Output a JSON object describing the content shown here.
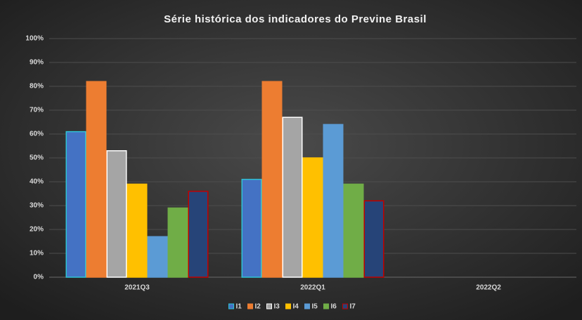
{
  "chart_data": {
    "type": "bar",
    "title": "Série histórica dos indicadores do Previne Brasil",
    "categories": [
      "2021Q3",
      "2022Q1",
      "2022Q2"
    ],
    "series": [
      {
        "name": "I1",
        "color": "#4472c4",
        "edgecolor": "#2ec4d6",
        "values": [
          61,
          41,
          null
        ]
      },
      {
        "name": "I2",
        "color": "#ed7d31",
        "edgecolor": "#ed7d31",
        "values": [
          82,
          82,
          null
        ]
      },
      {
        "name": "I3",
        "color": "#a5a5a5",
        "edgecolor": "#ffffff",
        "values": [
          53,
          67,
          null
        ]
      },
      {
        "name": "I4",
        "color": "#ffc000",
        "edgecolor": "#ffc000",
        "values": [
          39,
          50,
          null
        ]
      },
      {
        "name": "I5",
        "color": "#5b9bd5",
        "edgecolor": "#5b9bd5",
        "values": [
          17,
          64,
          null
        ]
      },
      {
        "name": "I6",
        "color": "#70ad47",
        "edgecolor": "#70ad47",
        "values": [
          29,
          39,
          null
        ]
      },
      {
        "name": "I7",
        "color": "#264478",
        "edgecolor": "#c00000",
        "values": [
          36,
          32,
          null
        ]
      }
    ],
    "ylim": [
      0,
      100
    ],
    "yticks": [
      {
        "value": 0,
        "label": "0%"
      },
      {
        "value": 10,
        "label": "10%"
      },
      {
        "value": 20,
        "label": "20%"
      },
      {
        "value": 30,
        "label": "30%"
      },
      {
        "value": 40,
        "label": "40%"
      },
      {
        "value": 50,
        "label": "50%"
      },
      {
        "value": 60,
        "label": "60%"
      },
      {
        "value": 70,
        "label": "70%"
      },
      {
        "value": 80,
        "label": "80%"
      },
      {
        "value": 90,
        "label": "90%"
      },
      {
        "value": 100,
        "label": "100%"
      }
    ],
    "grid": true,
    "legend": "bottom"
  }
}
